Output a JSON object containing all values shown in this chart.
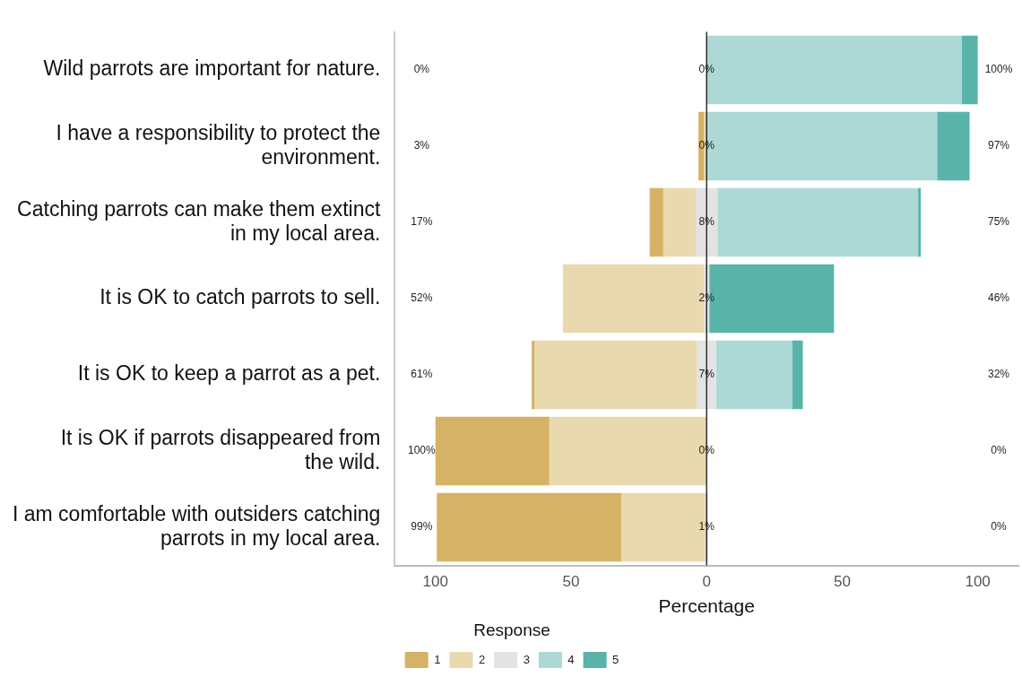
{
  "chart_data": {
    "type": "bar",
    "orientation": "horizontal",
    "xlabel": "Percentage",
    "legend_title": "Response",
    "legend": "bottom",
    "grid": false,
    "categories": [
      "Wild parrots are important for nature.",
      "I have a responsibility to protect the\nenvironment.",
      "Catching parrots can make them extinct\nin my local area.",
      "It is OK to catch parrots to sell.",
      "It is OK to keep a parrot as a pet.",
      "It is OK if parrots disappeared from\nthe wild.",
      "I am comfortable with outsiders catching\nparrots in my local area."
    ],
    "series": [
      {
        "name": "1",
        "color": "#d6b266",
        "values": [
          null,
          2,
          5,
          null,
          1,
          42,
          68
        ],
        "base": [
          null,
          -3,
          -21,
          null,
          -64.5,
          -100,
          -99.5
        ]
      },
      {
        "name": "2",
        "color": "#e9d9af",
        "values": [
          null,
          1,
          12,
          52,
          60,
          58,
          31
        ],
        "base": [
          null,
          -1,
          -16,
          -53,
          -63.5,
          -58,
          -31.5
        ]
      },
      {
        "name": "3",
        "color": "#e3e3e3",
        "values": [
          null,
          null,
          8,
          2,
          7,
          null,
          1
        ],
        "base": [
          null,
          null,
          -4,
          -1,
          -3.5,
          null,
          -0.5
        ]
      },
      {
        "name": "4",
        "color": "#acd9d5",
        "values": [
          94,
          85,
          74,
          null,
          28,
          null,
          null
        ],
        "base": [
          0,
          0,
          4,
          null,
          3.5,
          null,
          null
        ]
      },
      {
        "name": "5",
        "color": "#5ab3a9",
        "values": [
          6,
          12,
          1,
          46,
          4,
          null,
          null
        ],
        "base": [
          94,
          85,
          78,
          1,
          31.5,
          null,
          null
        ]
      }
    ],
    "xlim": [
      -115,
      115
    ],
    "xticks": [
      {
        "value": -100,
        "label": "100"
      },
      {
        "value": -50,
        "label": "50"
      },
      0,
      50,
      100
    ],
    "ref_lines": [
      {
        "axis": "x",
        "value": 0,
        "color": "#000000"
      }
    ],
    "annotations": [
      "0%",
      "0%",
      "100%",
      "3%",
      "0%",
      "97%",
      "17%",
      "8%",
      "75%",
      "52%",
      "2%",
      "46%",
      "61%",
      "7%",
      "32%",
      "100%",
      "0%",
      "0%",
      "99%",
      "1%",
      "0%"
    ]
  }
}
